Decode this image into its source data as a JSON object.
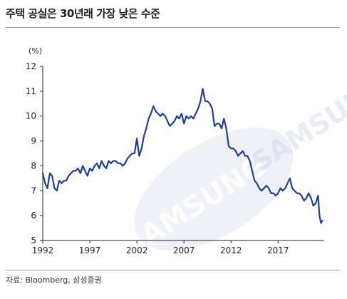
{
  "title": "주택 공실은 30년래 가장 낮은 수준",
  "source": "자료: Bloomberg, 삼성증권",
  "watermark": {
    "text": "SAMSUNG",
    "color": "#c9d3ea"
  },
  "chart_data": {
    "type": "line",
    "unit_label": "(%)",
    "line_color": "#1f3f93",
    "xlim": [
      1992,
      2021.9
    ],
    "ylim": [
      5,
      12
    ],
    "yticks": [
      5,
      6,
      7,
      8,
      9,
      10,
      11,
      12
    ],
    "xticks": [
      1992,
      1997,
      2002,
      2007,
      2012,
      2017
    ],
    "grid": false,
    "series": [
      {
        "x": [
          1992.0,
          1992.25,
          1992.5,
          1992.75,
          1993.0,
          1993.25,
          1993.5,
          1993.75,
          1994.0,
          1994.25,
          1994.5,
          1994.75,
          1995.0,
          1995.25,
          1995.5,
          1995.75,
          1996.0,
          1996.25,
          1996.5,
          1996.75,
          1997.0,
          1997.25,
          1997.5,
          1997.75,
          1998.0,
          1998.25,
          1998.5,
          1998.75,
          1999.0,
          1999.25,
          1999.5,
          1999.75,
          2000.0,
          2000.25,
          2000.5,
          2000.75,
          2001.0,
          2001.25,
          2001.5,
          2001.75,
          2002.0,
          2002.25,
          2002.5,
          2002.75,
          2003.0,
          2003.25,
          2003.5,
          2003.75,
          2004.0,
          2004.25,
          2004.5,
          2004.75,
          2005.0,
          2005.25,
          2005.5,
          2005.75,
          2006.0,
          2006.25,
          2006.5,
          2006.75,
          2007.0,
          2007.25,
          2007.5,
          2007.75,
          2008.0,
          2008.25,
          2008.5,
          2008.75,
          2009.0,
          2009.25,
          2009.5,
          2009.75,
          2010.0,
          2010.25,
          2010.5,
          2010.75,
          2011.0,
          2011.25,
          2011.5,
          2011.75,
          2012.0,
          2012.25,
          2012.5,
          2012.75,
          2013.0,
          2013.25,
          2013.5,
          2013.75,
          2014.0,
          2014.25,
          2014.5,
          2014.75,
          2015.0,
          2015.25,
          2015.5,
          2015.75,
          2016.0,
          2016.25,
          2016.5,
          2016.75,
          2017.0,
          2017.25,
          2017.5,
          2017.75,
          2018.0,
          2018.25,
          2018.5,
          2018.75,
          2019.0,
          2019.25,
          2019.5,
          2019.75,
          2020.0,
          2020.25,
          2020.5,
          2020.75,
          2021.0,
          2021.25
        ],
        "y": [
          7.7,
          7.3,
          7.1,
          7.7,
          7.6,
          7.1,
          7.0,
          7.4,
          7.3,
          7.4,
          7.4,
          7.6,
          7.7,
          7.8,
          7.8,
          7.9,
          7.7,
          8.0,
          7.8,
          7.6,
          7.9,
          7.8,
          8.0,
          8.1,
          7.9,
          8.2,
          8.0,
          7.9,
          8.2,
          8.1,
          8.2,
          8.2,
          8.1,
          8.1,
          8.0,
          8.1,
          8.3,
          8.4,
          8.5,
          8.5,
          9.1,
          8.4,
          8.7,
          9.2,
          9.5,
          9.9,
          10.1,
          10.4,
          10.2,
          10.1,
          10.0,
          10.1,
          10.0,
          9.8,
          9.6,
          9.7,
          9.8,
          10.0,
          9.9,
          10.1,
          9.7,
          10.0,
          9.9,
          10.0,
          9.9,
          10.1,
          10.3,
          10.6,
          11.1,
          10.6,
          10.6,
          10.5,
          10.3,
          9.6,
          9.7,
          9.7,
          9.5,
          9.9,
          9.5,
          8.8,
          8.7,
          8.7,
          8.6,
          8.4,
          8.5,
          8.6,
          8.4,
          8.4,
          8.2,
          7.8,
          7.4,
          7.3,
          7.1,
          7.0,
          7.1,
          7.2,
          7.1,
          6.9,
          6.9,
          6.8,
          6.9,
          7.1,
          7.0,
          7.1,
          7.3,
          7.5,
          7.1,
          7.0,
          6.9,
          6.9,
          6.8,
          6.6,
          6.7,
          6.9,
          6.7,
          6.4,
          6.5,
          6.8
        ]
      },
      {
        "x": [
          2021.25,
          2021.4,
          2021.55,
          2021.7
        ],
        "y": [
          6.8,
          6.0,
          5.7,
          5.8
        ]
      }
    ]
  }
}
